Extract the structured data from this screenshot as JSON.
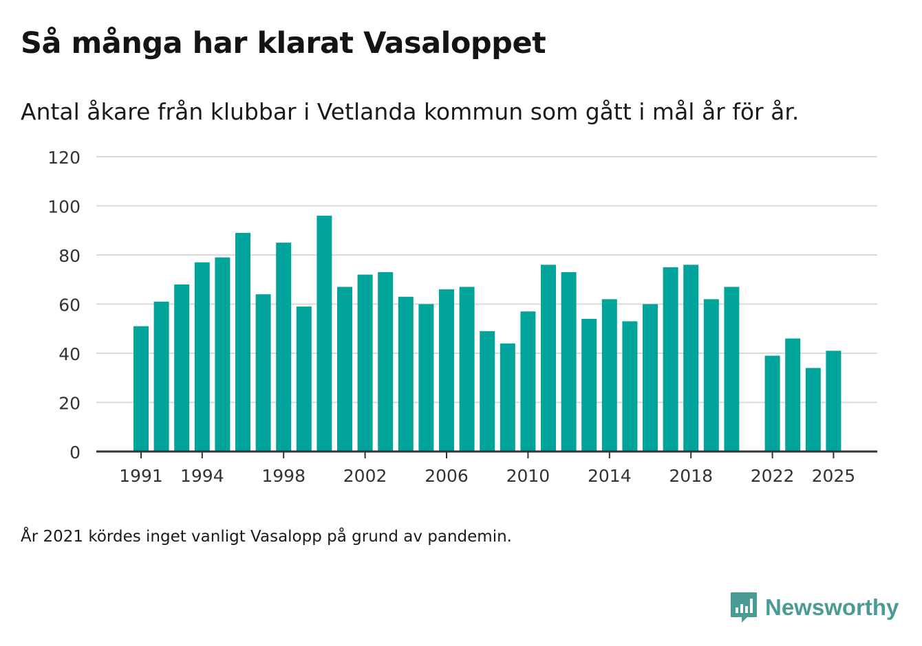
{
  "title": "Så många har klarat Vasaloppet",
  "subtitle": "Antal åkare från klubbar i Vetlanda kommun som gått i mål år för år.",
  "note": "År 2021 kördes inget vanligt Vasalopp på grund av pandemin.",
  "brand": {
    "name": "Newsworthy",
    "icon": "newsworthy-logo-icon"
  },
  "colors": {
    "bar": "#00a49a",
    "grid": "#d9d9d9",
    "axis": "#333333",
    "brand": "#4a9b95"
  },
  "chart_data": {
    "type": "bar",
    "title": "Så många har klarat Vasaloppet",
    "xlabel": "",
    "ylabel": "",
    "ylim": [
      0,
      120
    ],
    "yticks": [
      0,
      20,
      40,
      60,
      80,
      100,
      120
    ],
    "grid": true,
    "xtick_labels": [
      "1991",
      "1994",
      "1998",
      "2002",
      "2006",
      "2010",
      "2014",
      "2018",
      "2022",
      "2025"
    ],
    "categories": [
      "1991",
      "1992",
      "1993",
      "1994",
      "1995",
      "1996",
      "1997",
      "1998",
      "1999",
      "2000",
      "2001",
      "2002",
      "2003",
      "2004",
      "2005",
      "2006",
      "2007",
      "2008",
      "2009",
      "2010",
      "2011",
      "2012",
      "2013",
      "2014",
      "2015",
      "2016",
      "2017",
      "2018",
      "2019",
      "2020",
      "2021",
      "2022",
      "2023",
      "2024",
      "2025"
    ],
    "values": [
      51,
      61,
      68,
      77,
      79,
      89,
      64,
      85,
      59,
      96,
      67,
      72,
      73,
      63,
      60,
      66,
      67,
      49,
      44,
      57,
      76,
      73,
      54,
      62,
      53,
      60,
      75,
      76,
      62,
      67,
      null,
      39,
      46,
      34,
      41
    ]
  }
}
